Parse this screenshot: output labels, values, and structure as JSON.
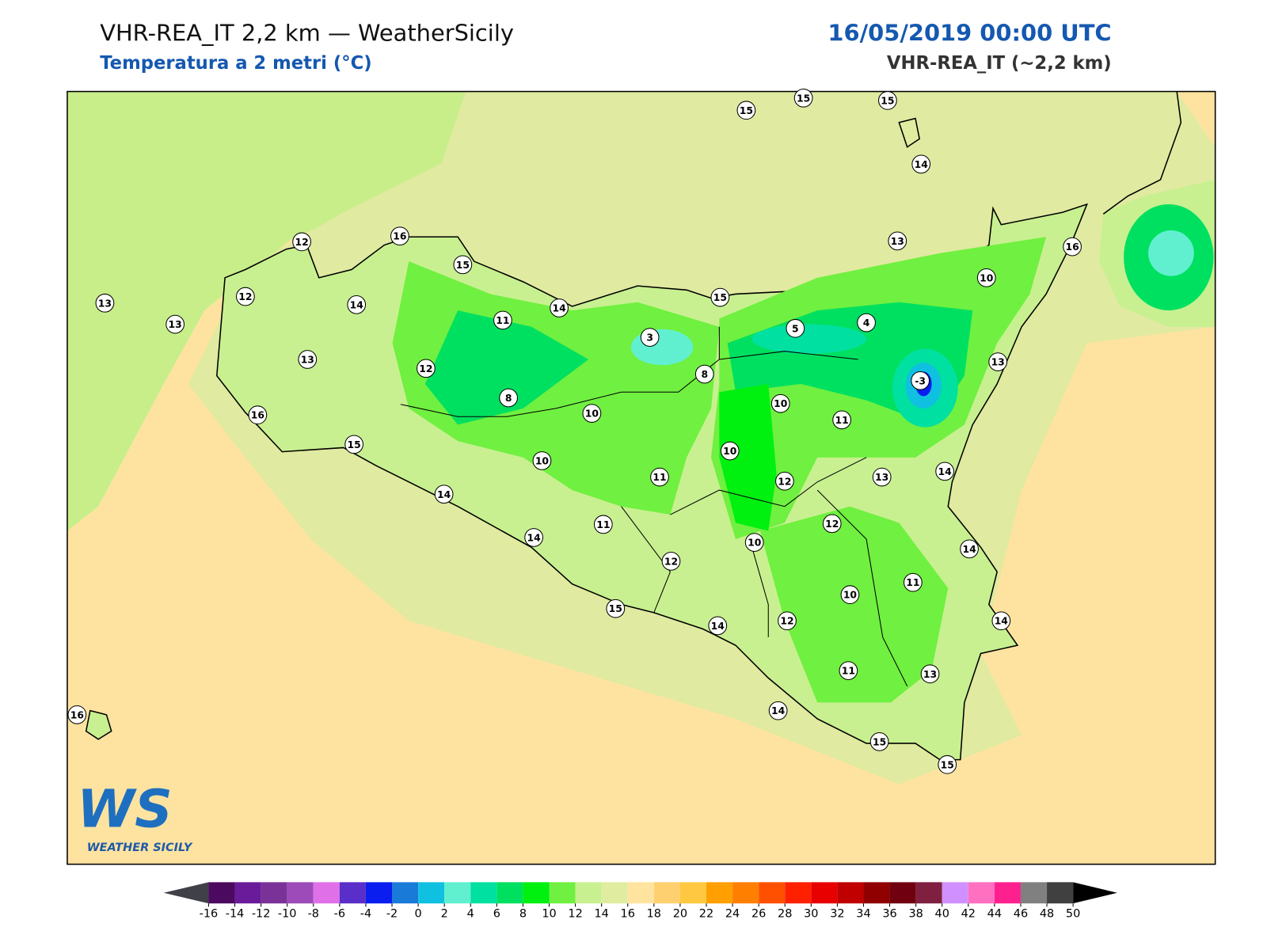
{
  "header": {
    "title": "VHR-REA_IT 2,2 km — WeatherSicily",
    "subtitle": "Temperatura a 2 metri (°C)",
    "datetime": "16/05/2019 00:00 UTC",
    "model": "VHR-REA_IT (~2,2 km)"
  },
  "stations": [
    15,
    15,
    15,
    14,
    12,
    16,
    15,
    12,
    13,
    14,
    13,
    11,
    14,
    15,
    13,
    16,
    10,
    13,
    12,
    3,
    5,
    4,
    8,
    8,
    -3,
    13,
    16,
    10,
    10,
    11,
    15,
    10,
    10,
    11,
    12,
    13,
    14,
    14,
    11,
    12,
    14,
    10,
    12,
    14,
    11,
    10,
    15,
    14,
    12,
    14,
    11,
    13,
    14,
    16,
    15,
    15
  ],
  "colorbar": {
    "ticks": [
      -16,
      -14,
      -12,
      -10,
      -8,
      -6,
      -4,
      -2,
      0,
      2,
      4,
      6,
      8,
      10,
      12,
      14,
      16,
      18,
      20,
      22,
      24,
      26,
      28,
      30,
      32,
      34,
      36,
      38,
      40,
      42,
      44,
      46,
      48,
      50
    ],
    "colors": [
      "#4b0a5f",
      "#6a1b9a",
      "#7b3298",
      "#9c4bb8",
      "#e070e8",
      "#5a2ec8",
      "#0a1ef0",
      "#1a7ad8",
      "#10c0e0",
      "#60f0d0",
      "#00e0a0",
      "#00e060",
      "#00f010",
      "#70f040",
      "#c8f090",
      "#e0eca0",
      "#ffe4a0",
      "#ffd070",
      "#ffc840",
      "#ffa000",
      "#ff8000",
      "#ff5000",
      "#ff2000",
      "#e80000",
      "#c00000",
      "#900000",
      "#700010",
      "#802040",
      "#d090ff",
      "#ff70c0",
      "#ff2090",
      "#808080",
      "#404040"
    ],
    "under_color": "#404048",
    "over_color": "#000000"
  },
  "logo": {
    "mark": "WS",
    "name": "WEATHER SICILY"
  }
}
